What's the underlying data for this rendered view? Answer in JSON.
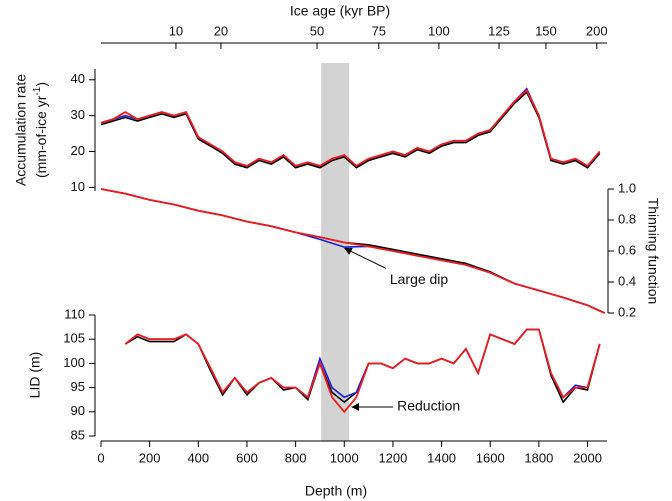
{
  "chart_data": [
    {
      "type": "line",
      "ylabel": [
        "Accumulation rate",
        "(mm-of-ice yr",
        "-1",
        ")"
      ],
      "x2label": "Ice age (kyr BP)",
      "x2ticks": [
        {
          "value": 10,
          "depth": 308
        },
        {
          "value": 20,
          "depth": 493
        },
        {
          "value": 50,
          "depth": 888
        },
        {
          "value": 75,
          "depth": 1142
        },
        {
          "value": 100,
          "depth": 1389
        },
        {
          "value": 125,
          "depth": 1636
        },
        {
          "value": 150,
          "depth": 1829
        },
        {
          "value": 200,
          "depth": 2038
        }
      ],
      "ylim": [
        9,
        43
      ],
      "yticks": [
        10,
        20,
        30,
        40
      ],
      "x": [
        0,
        50,
        100,
        150,
        200,
        250,
        300,
        350,
        400,
        450,
        500,
        550,
        600,
        650,
        700,
        750,
        800,
        850,
        900,
        950,
        1000,
        1050,
        1100,
        1150,
        1200,
        1250,
        1300,
        1350,
        1400,
        1450,
        1500,
        1550,
        1600,
        1650,
        1700,
        1750,
        1800,
        1850,
        1900,
        1950,
        2000,
        2050
      ],
      "series": [
        {
          "color": "#000000",
          "values": [
            27.5,
            28.5,
            29.5,
            28.5,
            29.5,
            30.5,
            29.5,
            30.5,
            23.5,
            21.5,
            19.5,
            16.5,
            15.5,
            17.5,
            16.5,
            18.5,
            15.5,
            16.5,
            15.5,
            17.5,
            18.5,
            15.5,
            17.5,
            18.5,
            19.5,
            18.5,
            20.5,
            19.5,
            21.5,
            22.5,
            22.5,
            24.5,
            25.5,
            29.5,
            33.5,
            36.5,
            29.5,
            17.5,
            16.5,
            17.5,
            15.5,
            19.5
          ]
        },
        {
          "color": "#1f1fd6",
          "values": [
            28,
            29,
            30,
            29,
            30,
            31,
            30,
            31,
            24,
            22,
            20,
            17,
            16,
            18,
            17,
            19,
            16,
            17,
            16,
            18,
            19,
            16,
            18,
            19,
            20,
            19,
            21,
            20,
            22,
            23,
            23,
            25,
            26,
            30,
            34,
            37.5,
            30,
            18,
            17,
            18,
            16,
            20
          ]
        },
        {
          "color": "#ee1c1c",
          "values": [
            28,
            29,
            31,
            29,
            30,
            31,
            30,
            31,
            24,
            22,
            20,
            17,
            16,
            18,
            17,
            19,
            16,
            17,
            16,
            18,
            19,
            16,
            18,
            19,
            20,
            19,
            21,
            20,
            22,
            23,
            23,
            25,
            26,
            30,
            34,
            37,
            30,
            18,
            17,
            18,
            16,
            20
          ]
        }
      ]
    },
    {
      "type": "line",
      "y2label": "Thinning function",
      "y2lim": [
        0.2,
        1.0
      ],
      "y2ticks": [
        0.2,
        0.4,
        0.6,
        0.8,
        {
          "value": 1.0,
          "label": "1.0"
        }
      ],
      "x": [
        0,
        100,
        200,
        300,
        400,
        500,
        600,
        700,
        800,
        900,
        1000,
        1100,
        1200,
        1300,
        1400,
        1500,
        1600,
        1700,
        1800,
        1900,
        2000,
        2070
      ],
      "series": [
        {
          "color": "#000000",
          "axis": "y2",
          "values": [
            1.0,
            0.97,
            0.93,
            0.9,
            0.86,
            0.83,
            0.79,
            0.76,
            0.72,
            0.69,
            0.655,
            0.64,
            0.61,
            0.58,
            0.55,
            0.52,
            0.465,
            0.39,
            0.345,
            0.3,
            0.25,
            0.2
          ]
        },
        {
          "color": "#1f1fd6",
          "axis": "y2",
          "values": [
            1.0,
            0.97,
            0.93,
            0.9,
            0.86,
            0.83,
            0.79,
            0.76,
            0.72,
            0.675,
            0.625,
            0.63,
            0.6,
            0.57,
            0.54,
            0.51,
            0.46,
            0.39,
            0.345,
            0.3,
            0.25,
            0.2
          ]
        },
        {
          "color": "#ee1c1c",
          "axis": "y2",
          "values": [
            1.0,
            0.97,
            0.93,
            0.9,
            0.86,
            0.83,
            0.79,
            0.76,
            0.72,
            0.69,
            0.655,
            0.63,
            0.6,
            0.57,
            0.54,
            0.51,
            0.46,
            0.39,
            0.345,
            0.3,
            0.25,
            0.2
          ]
        }
      ],
      "annotations": [
        {
          "text": "Large dip",
          "x": 990,
          "y": 0.63
        }
      ]
    },
    {
      "type": "line",
      "ylabel": "LID (m)",
      "xlabel": "Depth (m)",
      "xlim": [
        0,
        2080
      ],
      "xticks": [
        0,
        200,
        400,
        600,
        800,
        1000,
        1200,
        1400,
        1600,
        1800,
        2000
      ],
      "ylim": [
        85,
        110
      ],
      "yticks": [
        85,
        90,
        95,
        100,
        105,
        110
      ],
      "shade": [
        905,
        1020
      ],
      "x": [
        100,
        150,
        200,
        250,
        300,
        350,
        400,
        450,
        500,
        550,
        600,
        650,
        700,
        750,
        800,
        850,
        900,
        950,
        1000,
        1050,
        1100,
        1150,
        1200,
        1250,
        1300,
        1350,
        1400,
        1450,
        1500,
        1550,
        1600,
        1650,
        1700,
        1750,
        1800,
        1850,
        1900,
        1950,
        2000,
        2050
      ],
      "series": [
        {
          "color": "#000000",
          "values": [
            104,
            105.5,
            104.5,
            104.5,
            104.5,
            106,
            104,
            98.5,
            93.5,
            97,
            93.5,
            96,
            97,
            94.5,
            95,
            92.5,
            100,
            94,
            92,
            94,
            100,
            100,
            99,
            101,
            100,
            100,
            101,
            100,
            103,
            98,
            106,
            105,
            104,
            107,
            107,
            97.5,
            92,
            95,
            94.5,
            104
          ]
        },
        {
          "color": "#1f1fd6",
          "values": [
            104,
            106,
            105,
            105,
            105,
            106,
            104,
            99,
            94,
            97,
            94,
            96,
            97,
            95,
            95,
            93,
            101,
            95,
            93,
            94,
            100,
            100,
            99,
            101,
            100,
            100,
            101,
            100,
            103,
            98,
            106,
            105,
            104,
            107,
            107,
            98,
            93,
            95.5,
            95,
            104
          ]
        },
        {
          "color": "#ee1c1c",
          "values": [
            104,
            106,
            105,
            105,
            105,
            106,
            104,
            99,
            94,
            97,
            94,
            96,
            97,
            95,
            95,
            93,
            100,
            93,
            90,
            93,
            100,
            100,
            99,
            101,
            100,
            100,
            101,
            100,
            103,
            98,
            106,
            105,
            104,
            107,
            107,
            98,
            93,
            95,
            95,
            104
          ]
        }
      ],
      "annotations": [
        {
          "text": "Reduction",
          "x": 1020,
          "y": 91
        }
      ]
    }
  ]
}
